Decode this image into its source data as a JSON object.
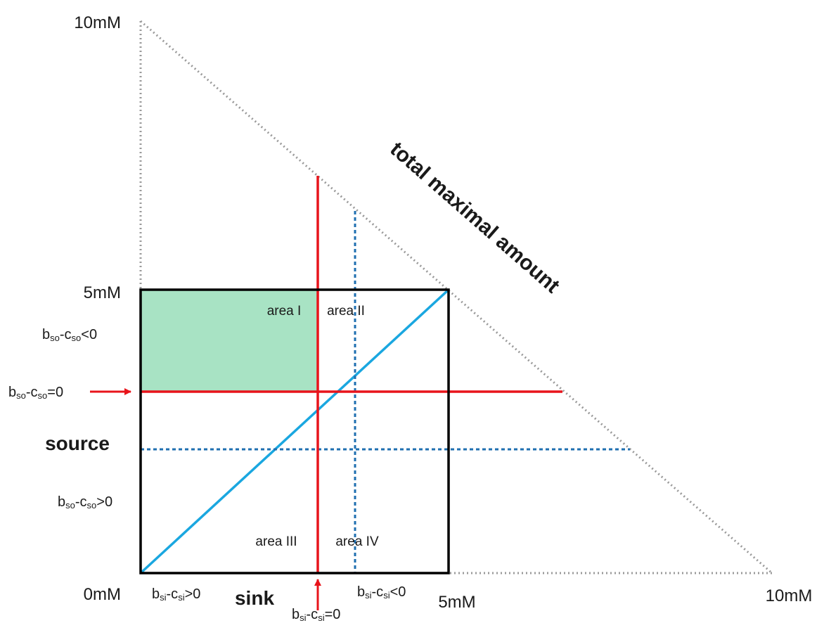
{
  "colors": {
    "green_region": "#a8e3c4",
    "red_line": "#e8141b",
    "blue_line": "#1aa7e0",
    "blue_dotted": "#1f6fb0",
    "gray_dotted": "#9a9a9a",
    "box": "#000000"
  },
  "axis": {
    "y_top": "10mM",
    "y_mid": "5mM",
    "origin": "0mM",
    "x_mid": "5mM",
    "x_right": "10mM",
    "x_label": "sink",
    "y_label": "source"
  },
  "hypotenuse_label": "total maximal amount",
  "areas": {
    "one": "area I",
    "two": "area II",
    "three": "area III",
    "four": "area IV"
  },
  "source_conditions": {
    "neg": {
      "b": "b",
      "sub1": "so",
      "mid": "-c",
      "sub2": "so",
      "rel": "<0"
    },
    "zero": {
      "b": "b",
      "sub1": "so",
      "mid": "-c",
      "sub2": "so",
      "rel": "=0"
    },
    "pos": {
      "b": "b",
      "sub1": "so",
      "mid": "-c",
      "sub2": "so",
      "rel": ">0"
    }
  },
  "sink_conditions": {
    "pos": {
      "b": "b",
      "sub1": "si",
      "mid": "-c",
      "sub2": "si",
      "rel": ">0"
    },
    "neg": {
      "b": "b",
      "sub1": "si",
      "mid": "-c",
      "sub2": "si",
      "rel": "<0"
    },
    "zero": {
      "b": "b",
      "sub1": "si",
      "mid": "-c",
      "sub2": "si",
      "rel": "=0"
    }
  }
}
